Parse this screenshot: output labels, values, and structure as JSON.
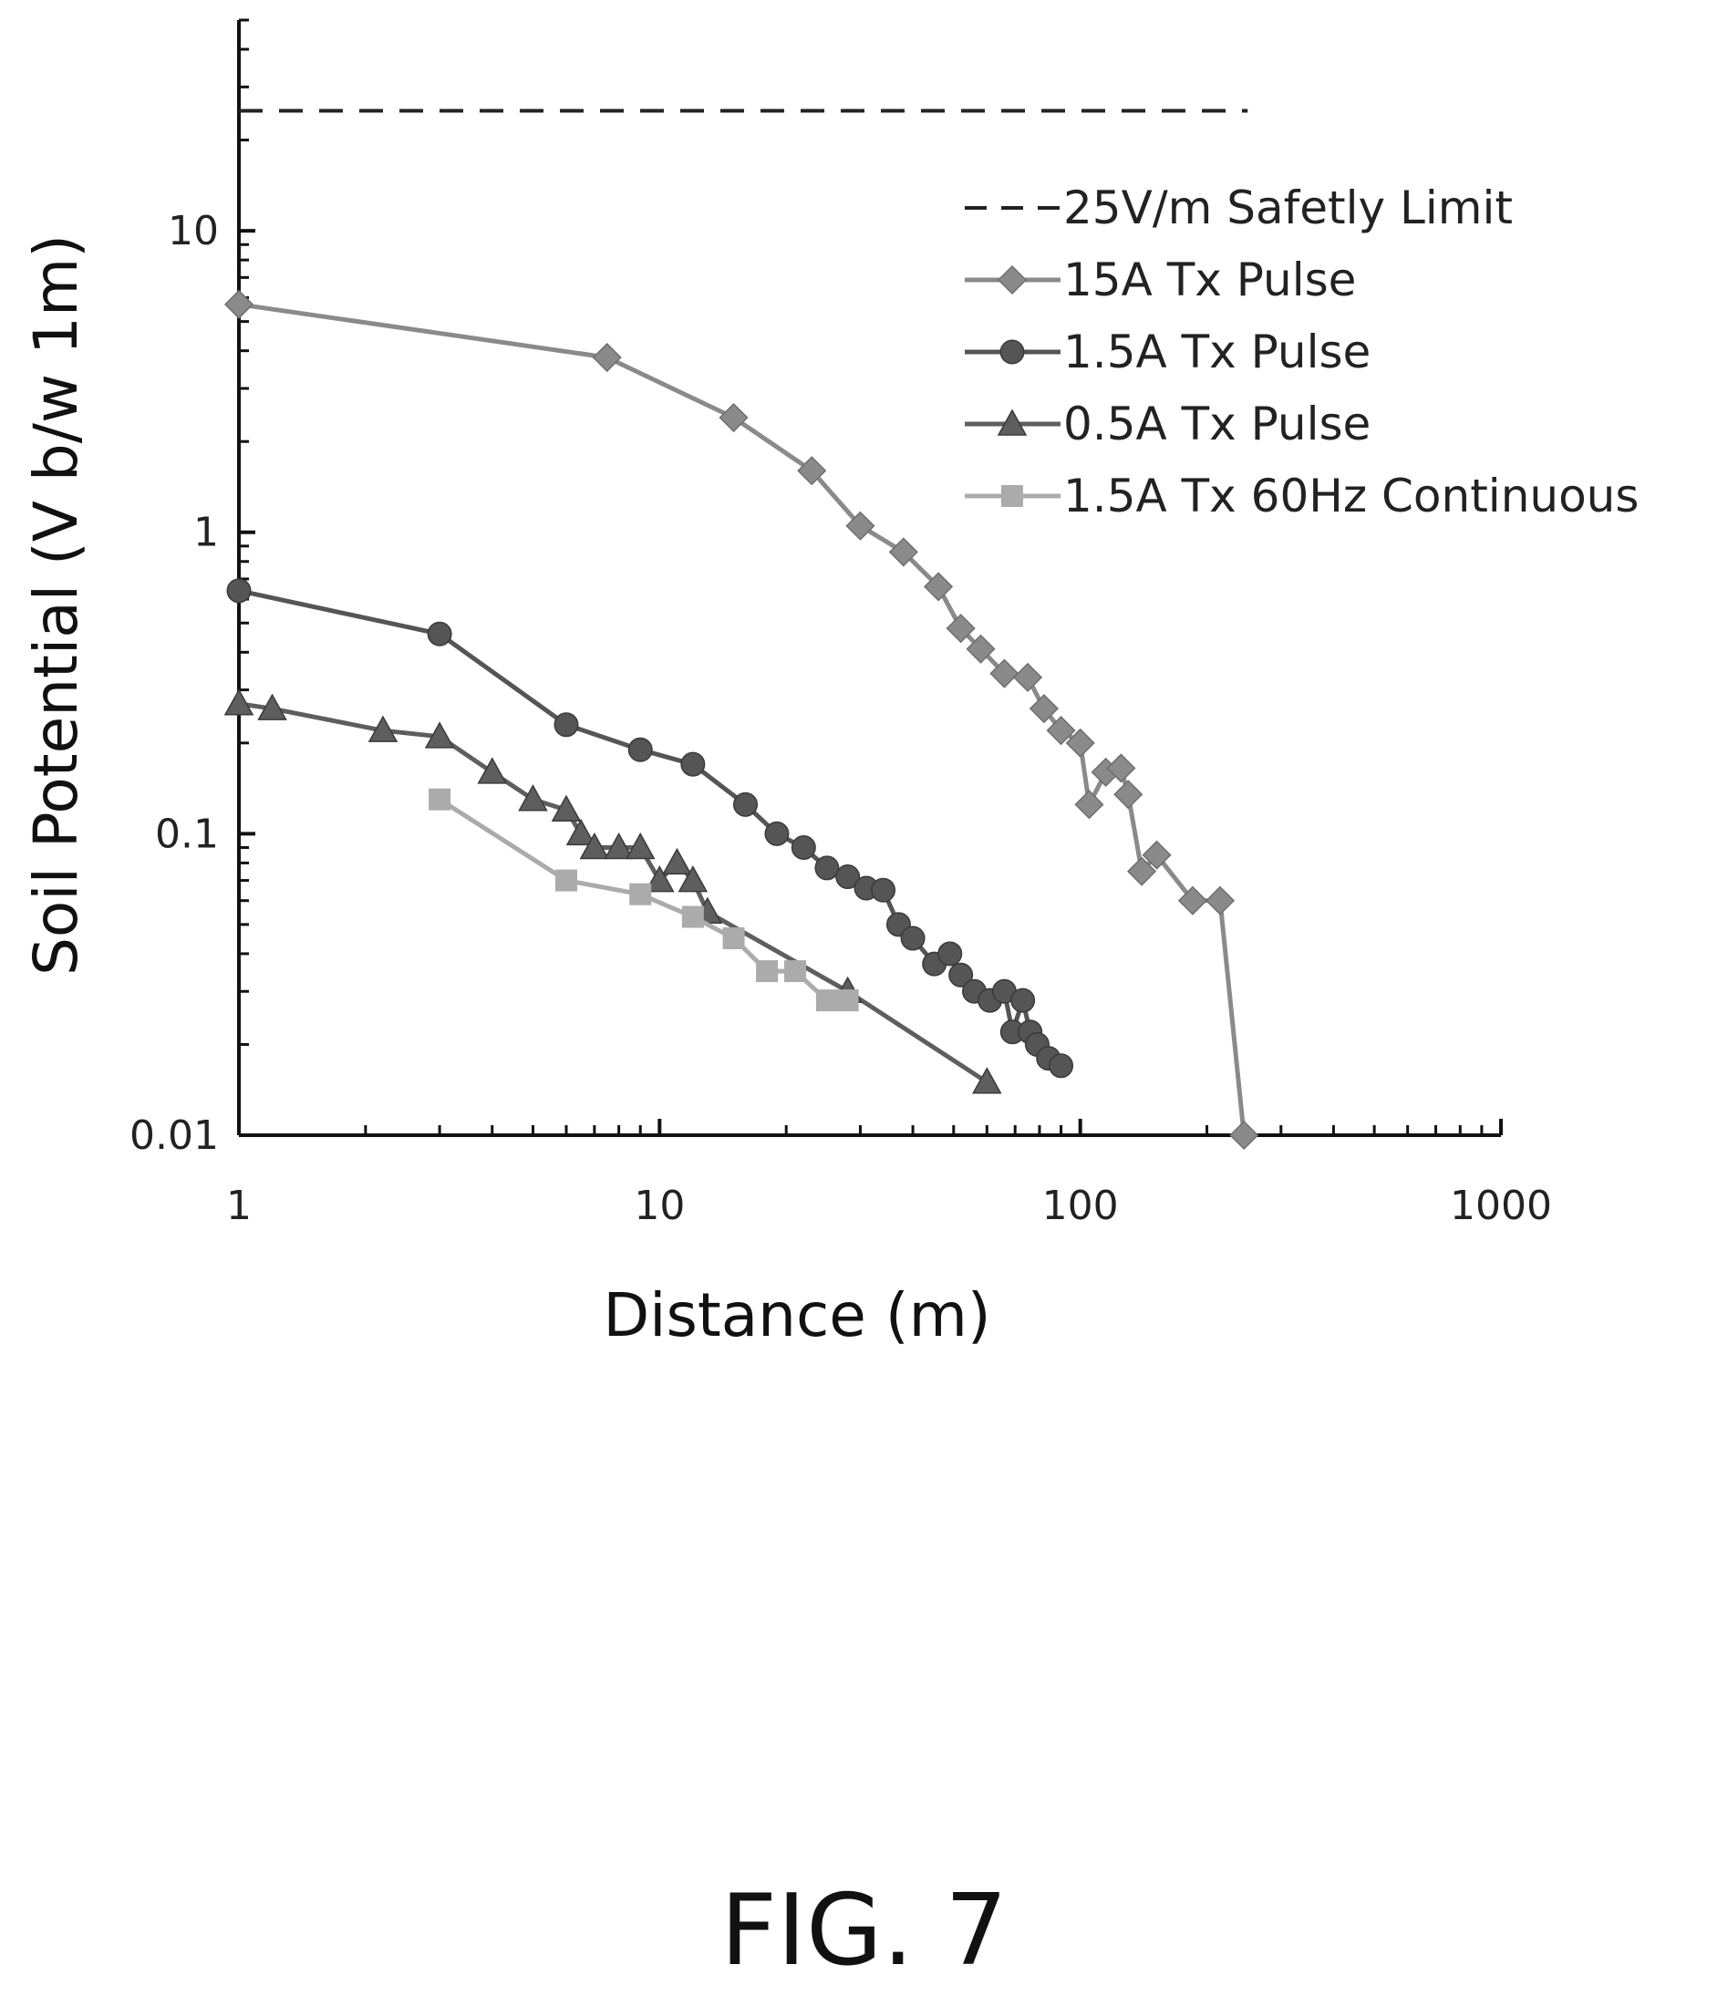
{
  "chart_data": {
    "type": "line",
    "xlabel": "Distance (m)",
    "ylabel": "Soil Potential (V b/w 1m)",
    "xscale": "log",
    "yscale": "log",
    "xlim": [
      1,
      1000
    ],
    "ylim": [
      0.01,
      50
    ],
    "x_ticks": [
      "1",
      "10",
      "100",
      "1000"
    ],
    "y_ticks": [
      "0.01",
      "0.1",
      "1",
      "10"
    ],
    "legend_position": "top-right",
    "grid": false,
    "series": [
      {
        "name": "25V/m Safetly Limit",
        "style": "dashed",
        "marker": "none",
        "color": "#222222",
        "points": [
          [
            1,
            25
          ],
          [
            250,
            25
          ]
        ]
      },
      {
        "name": "15A Tx Pulse",
        "marker": "diamond",
        "color": "#8a8a8a",
        "points": [
          [
            1,
            5.7
          ],
          [
            7.5,
            3.8
          ],
          [
            15,
            2.4
          ],
          [
            23,
            1.6
          ],
          [
            30,
            1.05
          ],
          [
            38,
            0.86
          ],
          [
            46,
            0.66
          ],
          [
            52,
            0.48
          ],
          [
            58,
            0.41
          ],
          [
            66,
            0.34
          ],
          [
            75,
            0.33
          ],
          [
            82,
            0.26
          ],
          [
            90,
            0.22
          ],
          [
            100,
            0.2
          ],
          [
            105,
            0.125
          ],
          [
            115,
            0.16
          ],
          [
            125,
            0.165
          ],
          [
            130,
            0.135
          ],
          [
            140,
            0.075
          ],
          [
            152,
            0.085
          ],
          [
            185,
            0.06
          ],
          [
            215,
            0.06
          ],
          [
            245,
            0.01
          ]
        ]
      },
      {
        "name": "1.5A Tx Pulse",
        "marker": "circle",
        "color": "#555555",
        "points": [
          [
            1,
            0.64
          ],
          [
            3,
            0.46
          ],
          [
            6,
            0.23
          ],
          [
            9,
            0.19
          ],
          [
            12,
            0.17
          ],
          [
            16,
            0.125
          ],
          [
            19,
            0.1
          ],
          [
            22,
            0.09
          ],
          [
            25,
            0.077
          ],
          [
            28,
            0.072
          ],
          [
            31,
            0.066
          ],
          [
            34,
            0.065
          ],
          [
            37,
            0.05
          ],
          [
            40,
            0.045
          ],
          [
            45,
            0.037
          ],
          [
            49,
            0.04
          ],
          [
            52,
            0.034
          ],
          [
            56,
            0.03
          ],
          [
            61,
            0.028
          ],
          [
            66,
            0.03
          ],
          [
            69,
            0.022
          ],
          [
            73,
            0.028
          ],
          [
            76,
            0.022
          ],
          [
            79,
            0.02
          ],
          [
            84,
            0.018
          ],
          [
            90,
            0.017
          ]
        ]
      },
      {
        "name": "0.5A Tx Pulse",
        "marker": "triangle",
        "color": "#5e5e5e",
        "points": [
          [
            1,
            0.27
          ],
          [
            1.2,
            0.26
          ],
          [
            2.2,
            0.22
          ],
          [
            3,
            0.21
          ],
          [
            4,
            0.16
          ],
          [
            5,
            0.13
          ],
          [
            6,
            0.12
          ],
          [
            6.5,
            0.1
          ],
          [
            7,
            0.09
          ],
          [
            8,
            0.09
          ],
          [
            9,
            0.09
          ],
          [
            10,
            0.07
          ],
          [
            11,
            0.08
          ],
          [
            12,
            0.07
          ],
          [
            13,
            0.055
          ],
          [
            28,
            0.03
          ],
          [
            60,
            0.015
          ]
        ]
      },
      {
        "name": "1.5A Tx 60Hz Continuous",
        "marker": "square",
        "color": "#ababab",
        "points": [
          [
            3,
            0.13
          ],
          [
            6,
            0.07
          ],
          [
            9,
            0.063
          ],
          [
            12,
            0.053
          ],
          [
            15,
            0.045
          ],
          [
            18,
            0.035
          ],
          [
            21,
            0.035
          ],
          [
            25,
            0.028
          ],
          [
            28,
            0.028
          ]
        ]
      }
    ]
  },
  "caption": "FIG. 7"
}
